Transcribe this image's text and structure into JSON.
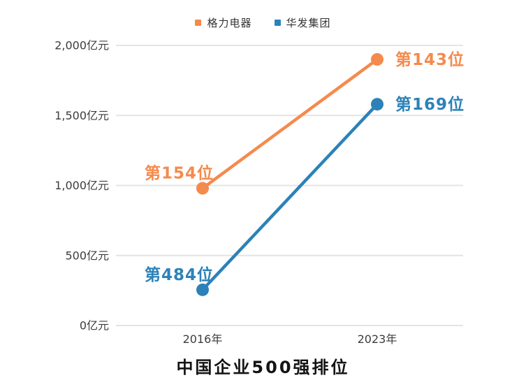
{
  "chart_data": {
    "type": "line",
    "title": "中国企业500强排位",
    "x_categories": [
      "2016年",
      "2023年"
    ],
    "series": [
      {
        "name": "格力电器",
        "color": "#F58A4D",
        "values": [
          980,
          1900
        ],
        "point_labels": [
          "第154位",
          "第143位"
        ]
      },
      {
        "name": "华发集团",
        "color": "#2C82B8",
        "values": [
          255,
          1580
        ],
        "point_labels": [
          "第484位",
          "第169位"
        ]
      }
    ],
    "y_axis": {
      "ylim": [
        0,
        2000
      ],
      "ticks": [
        0,
        500,
        1000,
        1500,
        2000
      ],
      "tick_labels": [
        "0亿元",
        "500亿元",
        "1,000亿元",
        "1,500亿元",
        "2,000亿元"
      ],
      "unit": "亿元"
    },
    "grid": true,
    "legend_position": "top",
    "grid_color": "#e4e4e4",
    "tick_text_color": "#3c3c3c"
  }
}
